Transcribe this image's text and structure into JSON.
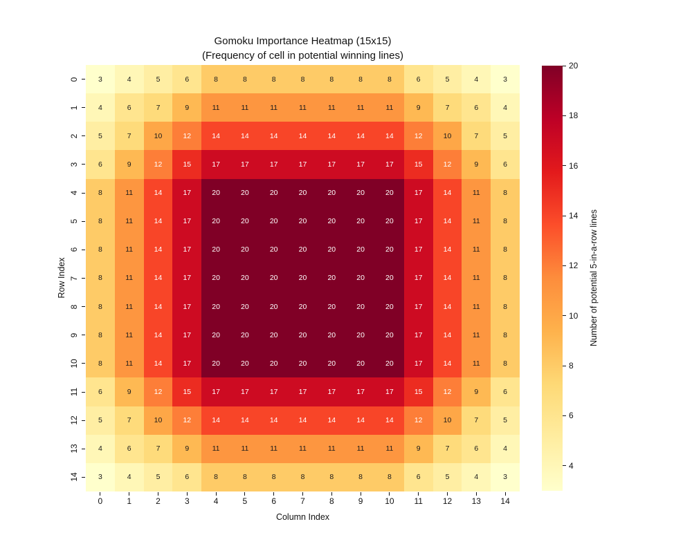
{
  "figure": {
    "title_line1": "Gomoku Importance Heatmap (15x15)",
    "title_line2": "(Frequency of cell in potential winning lines)",
    "background": "#ffffff"
  },
  "chart_data": {
    "type": "heatmap",
    "title": "Gomoku Importance Heatmap (15x15)\n(Frequency of cell in potential winning lines)",
    "xlabel": "Column Index",
    "ylabel": "Row Index",
    "x_ticklabels": [
      "0",
      "1",
      "2",
      "3",
      "4",
      "5",
      "6",
      "7",
      "8",
      "9",
      "10",
      "11",
      "12",
      "13",
      "14"
    ],
    "y_ticklabels": [
      "0",
      "1",
      "2",
      "3",
      "4",
      "5",
      "6",
      "7",
      "8",
      "9",
      "10",
      "11",
      "12",
      "13",
      "14"
    ],
    "matrix": [
      [
        3,
        4,
        5,
        6,
        8,
        8,
        8,
        8,
        8,
        8,
        8,
        6,
        5,
        4,
        3
      ],
      [
        4,
        6,
        7,
        9,
        11,
        11,
        11,
        11,
        11,
        11,
        11,
        9,
        7,
        6,
        4
      ],
      [
        5,
        7,
        10,
        12,
        14,
        14,
        14,
        14,
        14,
        14,
        14,
        12,
        10,
        7,
        5
      ],
      [
        6,
        9,
        12,
        15,
        17,
        17,
        17,
        17,
        17,
        17,
        17,
        15,
        12,
        9,
        6
      ],
      [
        8,
        11,
        14,
        17,
        20,
        20,
        20,
        20,
        20,
        20,
        20,
        17,
        14,
        11,
        8
      ],
      [
        8,
        11,
        14,
        17,
        20,
        20,
        20,
        20,
        20,
        20,
        20,
        17,
        14,
        11,
        8
      ],
      [
        8,
        11,
        14,
        17,
        20,
        20,
        20,
        20,
        20,
        20,
        20,
        17,
        14,
        11,
        8
      ],
      [
        8,
        11,
        14,
        17,
        20,
        20,
        20,
        20,
        20,
        20,
        20,
        17,
        14,
        11,
        8
      ],
      [
        8,
        11,
        14,
        17,
        20,
        20,
        20,
        20,
        20,
        20,
        20,
        17,
        14,
        11,
        8
      ],
      [
        8,
        11,
        14,
        17,
        20,
        20,
        20,
        20,
        20,
        20,
        20,
        17,
        14,
        11,
        8
      ],
      [
        8,
        11,
        14,
        17,
        20,
        20,
        20,
        20,
        20,
        20,
        20,
        17,
        14,
        11,
        8
      ],
      [
        6,
        9,
        12,
        15,
        17,
        17,
        17,
        17,
        17,
        17,
        17,
        15,
        12,
        9,
        6
      ],
      [
        5,
        7,
        10,
        12,
        14,
        14,
        14,
        14,
        14,
        14,
        14,
        12,
        10,
        7,
        5
      ],
      [
        4,
        6,
        7,
        9,
        11,
        11,
        11,
        11,
        11,
        11,
        11,
        9,
        7,
        6,
        4
      ],
      [
        3,
        4,
        5,
        6,
        8,
        8,
        8,
        8,
        8,
        8,
        8,
        6,
        5,
        4,
        3
      ]
    ],
    "vmin": 3,
    "vmax": 20,
    "annotated": true,
    "annotation_colors": {
      "dark": "#1a1a1a",
      "light": "#ffffff"
    },
    "colormap": {
      "name": "YlOrRd",
      "stops": [
        "#ffffcc",
        "#ffeda0",
        "#fed976",
        "#feb24c",
        "#fd8d3c",
        "#fc4e2a",
        "#e31a1c",
        "#bd0026",
        "#800026"
      ]
    },
    "colorbar": {
      "label": "Number of potential 5-in-a-row lines",
      "ticks": [
        4,
        6,
        8,
        10,
        12,
        14,
        16,
        18,
        20
      ]
    },
    "grid": false,
    "legend": "colorbar-right"
  }
}
